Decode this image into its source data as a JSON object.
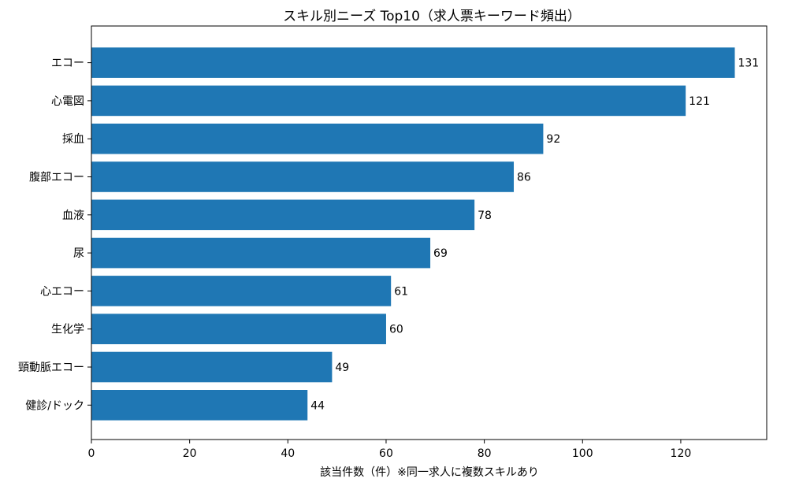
{
  "chart_data": {
    "type": "bar",
    "orientation": "horizontal",
    "title": "スキル別ニーズ Top10（求人票キーワード頻出）",
    "xlabel": "該当件数（件）※同一求人に複数スキルあり",
    "ylabel": "",
    "xlim": [
      0,
      137.5
    ],
    "xticks": [
      0,
      20,
      40,
      60,
      80,
      100,
      120
    ],
    "grid": false,
    "color": "#1f77b4",
    "categories": [
      "エコー",
      "心電図",
      "採血",
      "腹部エコー",
      "血液",
      "尿",
      "心エコー",
      "生化学",
      "頸動脈エコー",
      "健診/ドック"
    ],
    "values": [
      131,
      121,
      92,
      86,
      78,
      69,
      61,
      60,
      49,
      44
    ]
  }
}
